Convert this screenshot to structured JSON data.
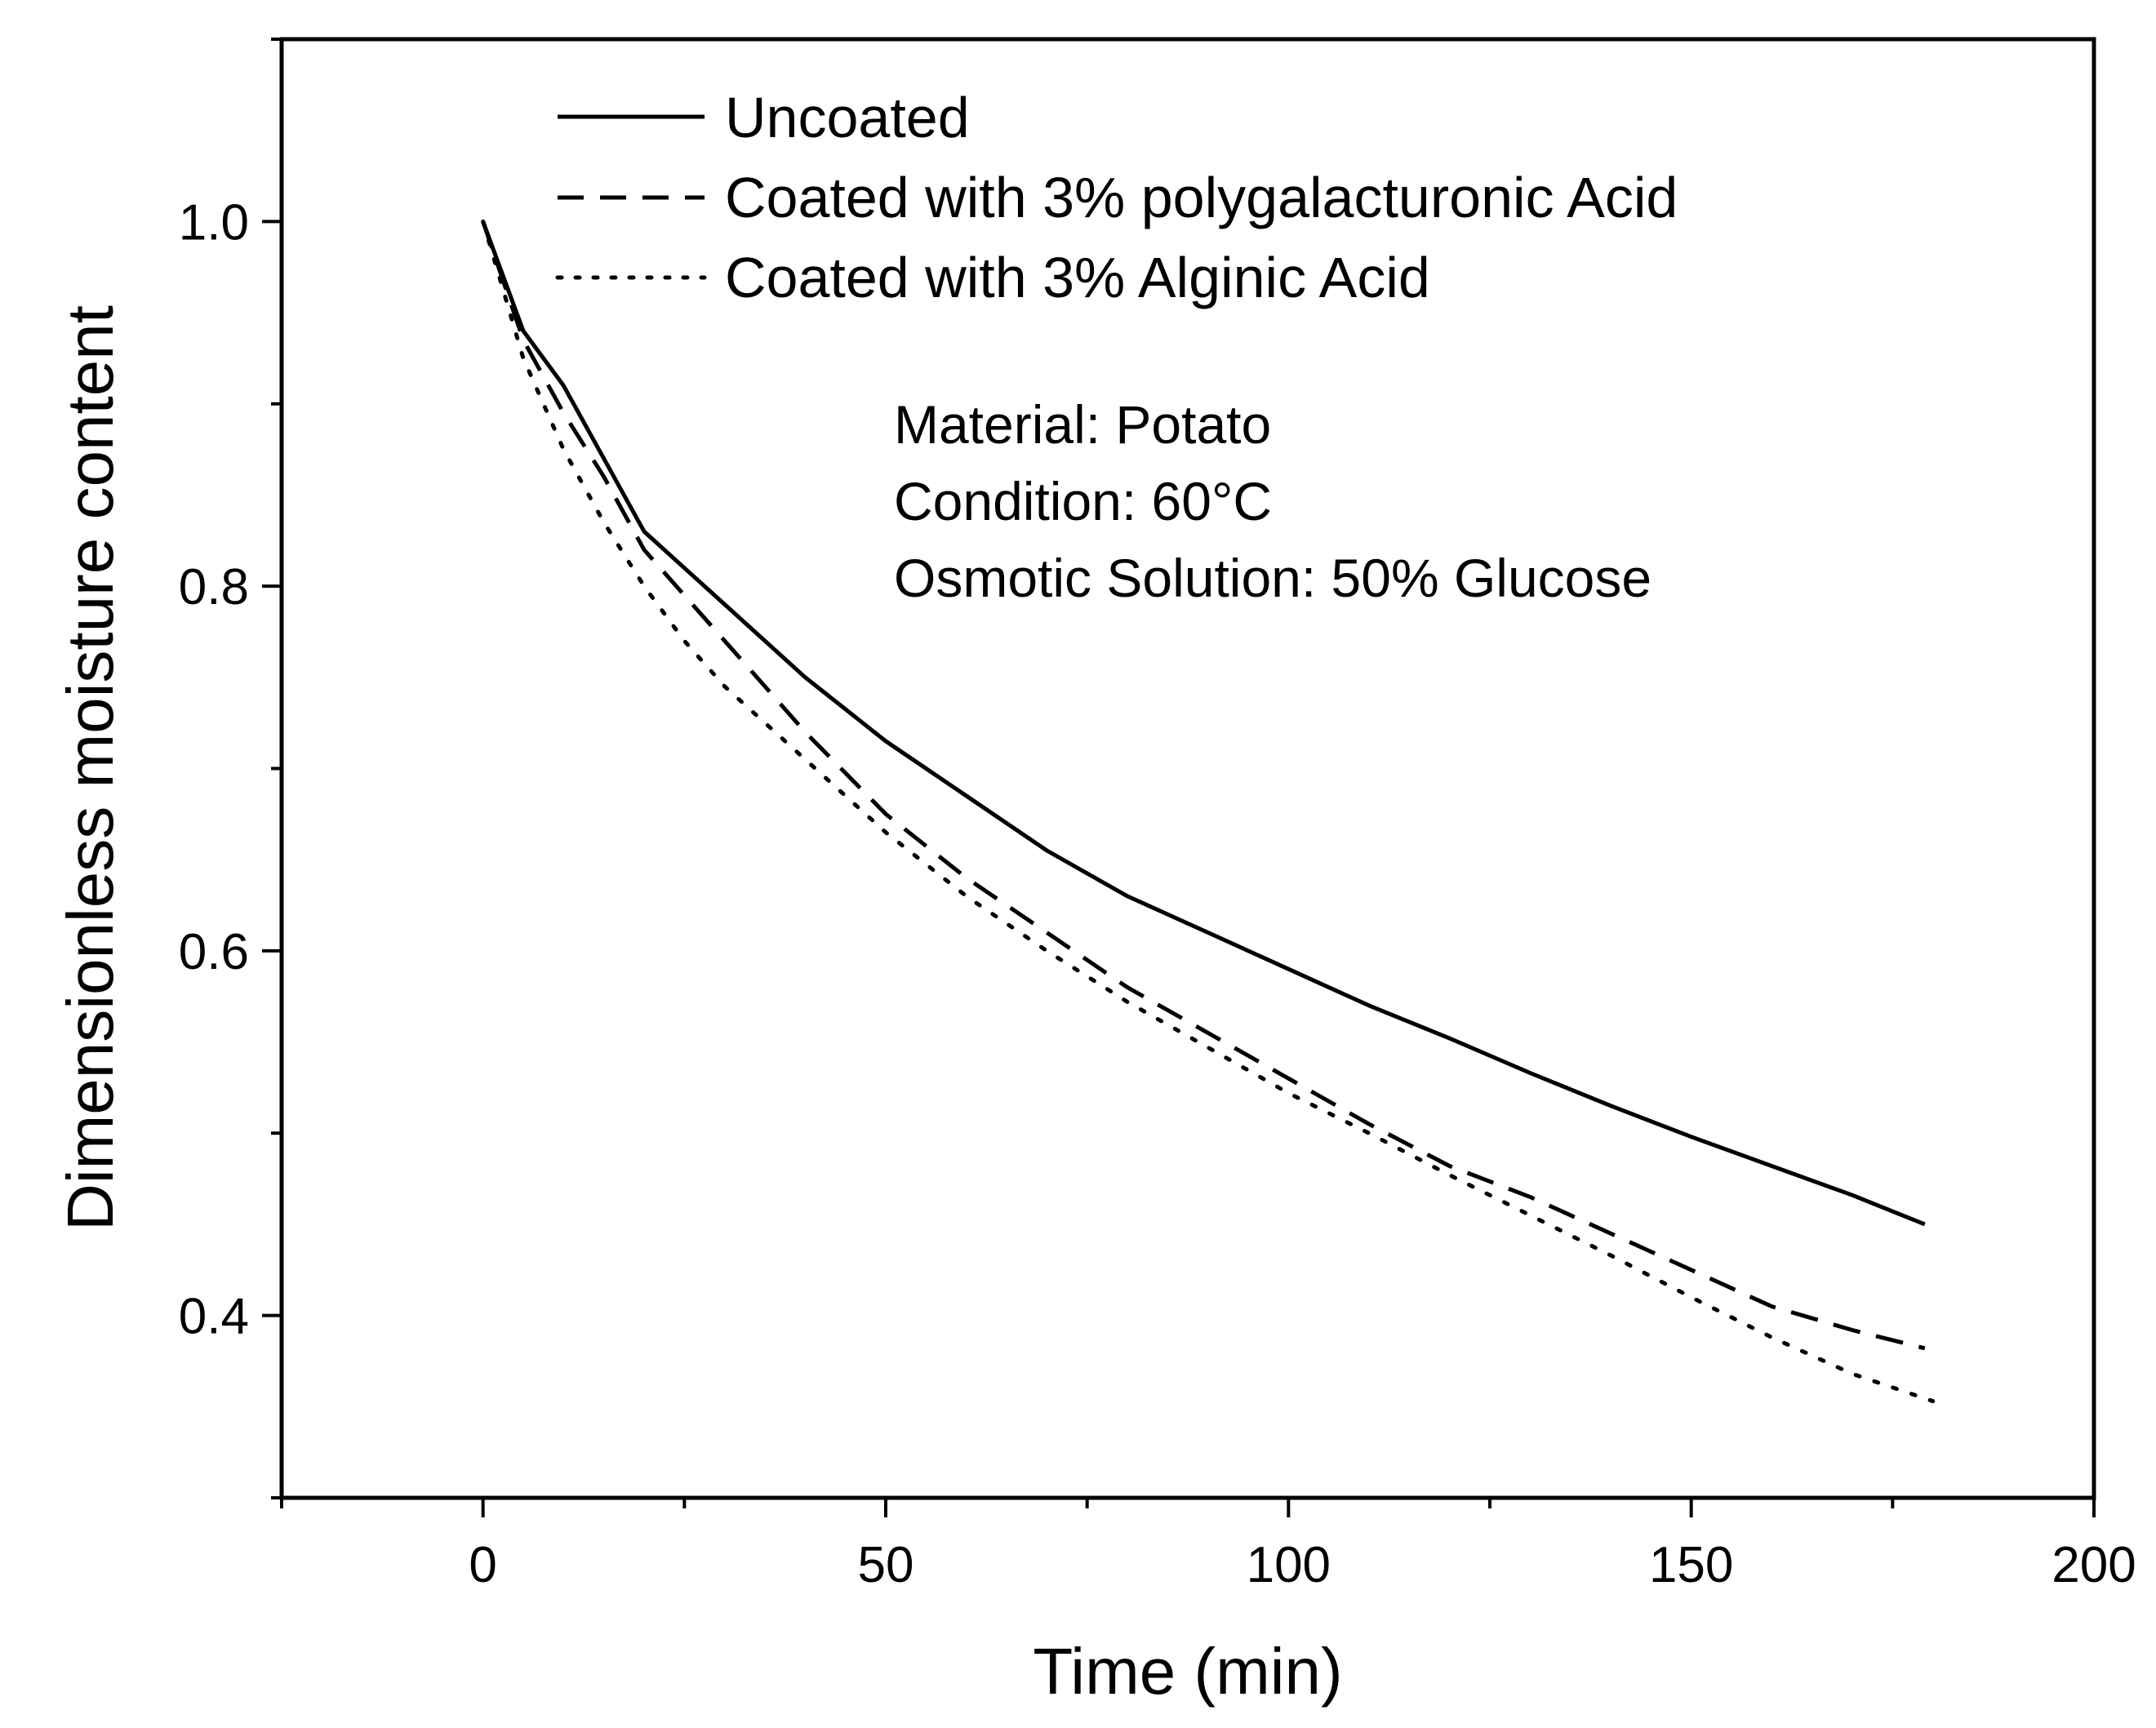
{
  "chart_data": {
    "type": "line",
    "title": "",
    "xlabel": "Time (min)",
    "ylabel": "Dimensionless moisture content",
    "xlim": [
      -25,
      200
    ],
    "ylim": [
      0.3,
      1.1
    ],
    "xticks": [
      0,
      50,
      100,
      150,
      200
    ],
    "yticks": [
      0.4,
      0.6,
      0.8,
      1.0
    ],
    "ytick_labels": [
      "0.4",
      "0.6",
      "0.8",
      "1.0"
    ],
    "grid": false,
    "legend_position": "top-left",
    "series": [
      {
        "name": "Uncoated",
        "style": "solid",
        "x": [
          0,
          5,
          10,
          15,
          20,
          25,
          30,
          40,
          50,
          60,
          70,
          80,
          90,
          100,
          110,
          120,
          130,
          140,
          150,
          160,
          170,
          179
        ],
        "y": [
          1.0,
          0.94,
          0.91,
          0.87,
          0.83,
          0.81,
          0.79,
          0.75,
          0.715,
          0.685,
          0.655,
          0.63,
          0.61,
          0.59,
          0.57,
          0.552,
          0.533,
          0.515,
          0.498,
          0.482,
          0.466,
          0.45
        ]
      },
      {
        "name": "Coated with 3% polygalacturonic Acid",
        "style": "dashed",
        "x": [
          0,
          5,
          10,
          15,
          20,
          25,
          30,
          40,
          50,
          60,
          70,
          80,
          90,
          100,
          110,
          120,
          130,
          140,
          150,
          160,
          170,
          179
        ],
        "y": [
          1.0,
          0.935,
          0.895,
          0.86,
          0.82,
          0.795,
          0.77,
          0.72,
          0.675,
          0.64,
          0.61,
          0.58,
          0.555,
          0.53,
          0.505,
          0.482,
          0.465,
          0.445,
          0.425,
          0.405,
          0.392,
          0.382
        ]
      },
      {
        "name": "Coated with 3% Alginic Acid",
        "style": "dotted",
        "x": [
          0,
          5,
          10,
          15,
          20,
          25,
          30,
          40,
          50,
          60,
          70,
          80,
          90,
          100,
          110,
          120,
          130,
          140,
          150,
          160,
          170,
          180
        ],
        "y": [
          1.0,
          0.925,
          0.875,
          0.835,
          0.8,
          0.77,
          0.745,
          0.705,
          0.665,
          0.63,
          0.6,
          0.572,
          0.547,
          0.522,
          0.5,
          0.477,
          0.455,
          0.433,
          0.41,
          0.388,
          0.368,
          0.353
        ]
      }
    ],
    "annotations": [
      "Material: Potato",
      "Condition: 60°C",
      "Osmotic Solution: 50% Glucose"
    ]
  }
}
